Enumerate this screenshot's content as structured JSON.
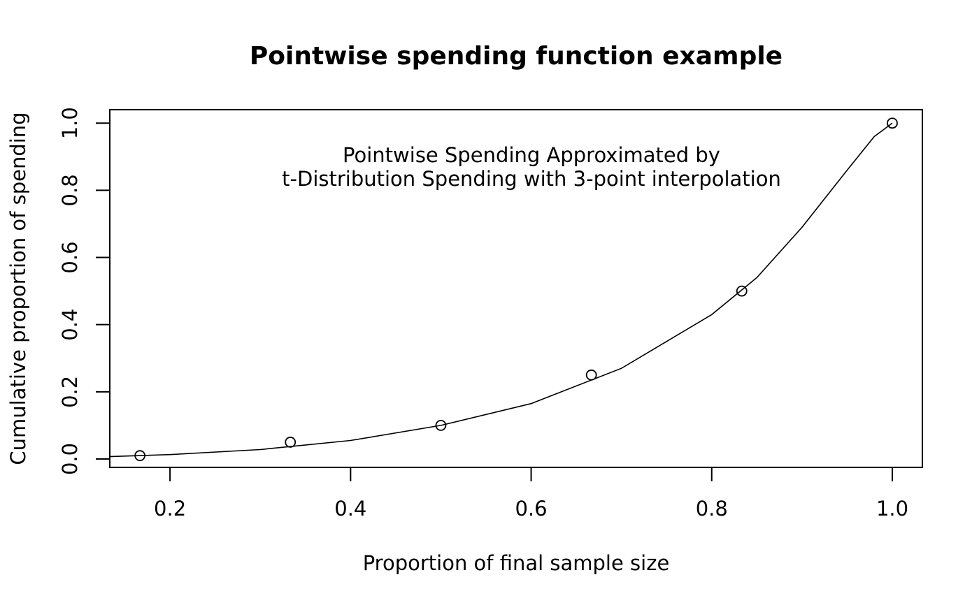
{
  "chart_data": {
    "type": "scatter",
    "title": "Pointwise spending function example",
    "xlabel": "Proportion of final sample size",
    "ylabel": "Cumulative proportion of spending",
    "xlim": [
      0.1333,
      1.0333
    ],
    "ylim": [
      -0.025,
      1.04
    ],
    "x_ticks": [
      0.2,
      0.4,
      0.6,
      0.8,
      1.0
    ],
    "x_tick_labels": [
      "0.2",
      "0.4",
      "0.6",
      "0.8",
      "1.0"
    ],
    "y_ticks": [
      0.0,
      0.2,
      0.4,
      0.6,
      0.8,
      1.0
    ],
    "y_tick_labels": [
      "0.0",
      "0.2",
      "0.4",
      "0.6",
      "0.8",
      "1.0"
    ],
    "annotations": [
      "Pointwise Spending Approximated by",
      "t-Distribution Spending with 3-point interpolation"
    ],
    "grid": false,
    "series": [
      {
        "kind": "points",
        "marker": "open-circle",
        "x": [
          0.1667,
          0.3333,
          0.5,
          0.6667,
          0.8333,
          1.0
        ],
        "y": [
          0.01,
          0.05,
          0.1,
          0.25,
          0.5,
          1.0
        ]
      },
      {
        "kind": "line",
        "x": [
          0.1333,
          0.2,
          0.3,
          0.4,
          0.5,
          0.6,
          0.7,
          0.8,
          0.85,
          0.9,
          0.95,
          0.98,
          1.0
        ],
        "y": [
          0.007,
          0.013,
          0.028,
          0.055,
          0.1,
          0.165,
          0.27,
          0.43,
          0.54,
          0.69,
          0.86,
          0.96,
          1.0
        ]
      }
    ]
  }
}
